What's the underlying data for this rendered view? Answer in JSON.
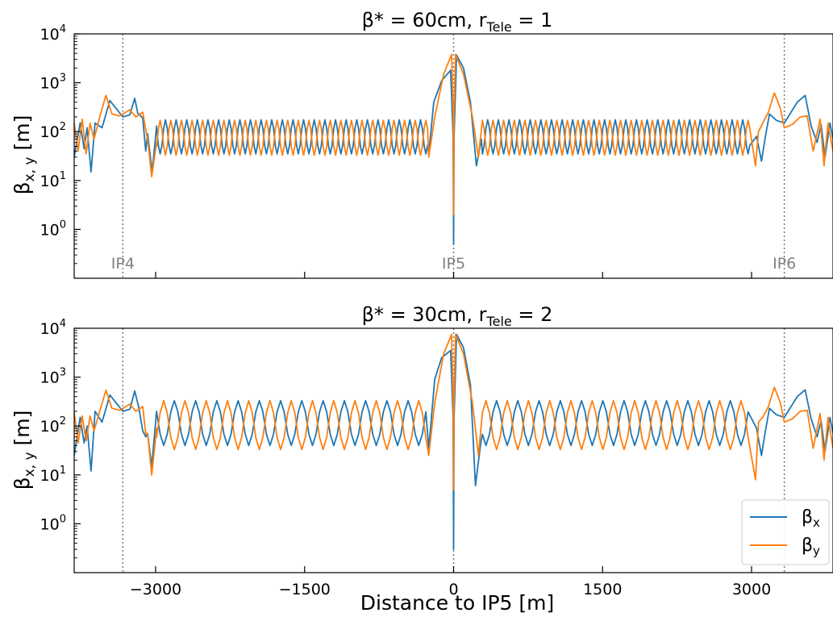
{
  "chart_data": [
    {
      "type": "line",
      "title_parts": {
        "a": "β*",
        "b": " = 60cm, r",
        "sub": "Tele",
        "c": " = 1"
      },
      "ylabel_parts": {
        "base": "β",
        "sub": "x, y",
        "rest": " [m]"
      },
      "yscale": "log",
      "ylim": [
        0.1,
        10000
      ],
      "xlim": [
        -3820,
        3820
      ],
      "xticks": [
        -3000,
        -1500,
        0,
        1500,
        3000
      ],
      "xticklabels_shown": false,
      "yticks": [
        {
          "value": 1,
          "base": "10",
          "exp": "0"
        },
        {
          "value": 10,
          "base": "10",
          "exp": "1"
        },
        {
          "value": 100,
          "base": "10",
          "exp": "2"
        },
        {
          "value": 1000,
          "base": "10",
          "exp": "3"
        },
        {
          "value": 10000,
          "base": "10",
          "exp": "4"
        }
      ],
      "ip_markers": [
        {
          "label": "IP4",
          "x": -3330
        },
        {
          "label": "IP5",
          "x": 0
        },
        {
          "label": "IP6",
          "x": 3330
        }
      ],
      "arc": {
        "period": 107,
        "start": 3030,
        "end": 230,
        "x": {
          "min": 35,
          "max": 175
        },
        "y": {
          "min": 33,
          "max": 170
        }
      },
      "series": [
        {
          "key": "bx",
          "color": "#1f77b4",
          "near_ip": [
            [
              -250,
              35
            ],
            [
              -200,
              400
            ],
            [
              -120,
              1100
            ],
            [
              -30,
              1800
            ],
            [
              -5,
              80
            ],
            [
              0,
              0.5
            ],
            [
              5,
              80
            ],
            [
              30,
              3700
            ],
            [
              100,
              2000
            ],
            [
              170,
              400
            ],
            [
              230,
              20
            ],
            [
              280,
              70
            ]
          ],
          "left_arc_end": [
            [
              -3100,
              40
            ],
            [
              -3035,
              15
            ],
            [
              -2990,
              130
            ]
          ],
          "insertion_left": [
            [
              -3820,
              30
            ],
            [
              -3760,
              150
            ],
            [
              -3720,
              45
            ],
            [
              -3690,
              120
            ],
            [
              -3650,
              15
            ],
            [
              -3610,
              150
            ],
            [
              -3540,
              120
            ],
            [
              -3460,
              430
            ],
            [
              -3330,
              200
            ],
            [
              -3260,
              220
            ],
            [
              -3210,
              480
            ],
            [
              -3180,
              240
            ],
            [
              -3130,
              190
            ],
            [
              -3080,
              90
            ]
          ],
          "insertion_right": [
            [
              3050,
              80
            ],
            [
              3100,
              25
            ],
            [
              3140,
              80
            ],
            [
              3180,
              230
            ],
            [
              3250,
              170
            ],
            [
              3330,
              150
            ],
            [
              3460,
              400
            ],
            [
              3540,
              550
            ],
            [
              3600,
              130
            ],
            [
              3660,
              60
            ],
            [
              3700,
              140
            ],
            [
              3740,
              30
            ],
            [
              3790,
              150
            ],
            [
              3820,
              70
            ]
          ]
        },
        {
          "key": "by",
          "color": "#ff7f0e",
          "near_ip": [
            [
              -250,
              30
            ],
            [
              -190,
              200
            ],
            [
              -100,
              1500
            ],
            [
              -20,
              3800
            ],
            [
              -3,
              200
            ],
            [
              0,
              2
            ],
            [
              3,
              200
            ],
            [
              20,
              3800
            ],
            [
              100,
              1500
            ],
            [
              190,
              200
            ],
            [
              250,
              30
            ]
          ],
          "left_arc_end": [
            [
              -3100,
              110
            ],
            [
              -3040,
              12
            ],
            [
              -2990,
              60
            ]
          ],
          "insertion_right": [
            [
              3040,
              20
            ],
            [
              3070,
              100
            ],
            [
              3120,
              160
            ],
            [
              3170,
              250
            ],
            [
              3230,
              620
            ],
            [
              3290,
              300
            ],
            [
              3330,
              120
            ],
            [
              3410,
              140
            ],
            [
              3490,
              200
            ],
            [
              3560,
              210
            ],
            [
              3620,
              40
            ],
            [
              3690,
              180
            ],
            [
              3730,
              20
            ],
            [
              3770,
              150
            ],
            [
              3820,
              40
            ]
          ],
          "insertion_left": [
            [
              -3820,
              150
            ],
            [
              -3780,
              40
            ],
            [
              -3740,
              180
            ],
            [
              -3700,
              35
            ],
            [
              -3660,
              150
            ],
            [
              -3620,
              70
            ],
            [
              -3560,
              210
            ],
            [
              -3500,
              550
            ],
            [
              -3440,
              230
            ],
            [
              -3360,
              210
            ],
            [
              -3260,
              280
            ],
            [
              -3200,
              200
            ],
            [
              -3130,
              250
            ],
            [
              -3080,
              70
            ]
          ]
        }
      ]
    },
    {
      "type": "line",
      "title_parts": {
        "a": "β*",
        "b": " = 30cm, r",
        "sub": "Tele",
        "c": " = 2"
      },
      "ylabel_parts": {
        "base": "β",
        "sub": "x, y",
        "rest": " [m]"
      },
      "xlabel": "Distance to IP5 [m]",
      "yscale": "log",
      "ylim": [
        0.1,
        10000
      ],
      "xlim": [
        -3820,
        3820
      ],
      "xticks": [
        -3000,
        -1500,
        0,
        1500,
        3000
      ],
      "xticklabels": [
        "−3000",
        "−1500",
        "0",
        "1500",
        "3000"
      ],
      "yticks": [
        {
          "value": 1,
          "base": "10",
          "exp": "0"
        },
        {
          "value": 10,
          "base": "10",
          "exp": "1"
        },
        {
          "value": 100,
          "base": "10",
          "exp": "2"
        },
        {
          "value": 1000,
          "base": "10",
          "exp": "3"
        },
        {
          "value": 10000,
          "base": "10",
          "exp": "4"
        }
      ],
      "ip_markers": [
        {
          "label": "",
          "x": -3330
        },
        {
          "label": "",
          "x": 0
        },
        {
          "label": "",
          "x": 3330
        }
      ],
      "arc": {
        "period": 214,
        "start": 3030,
        "end": 230,
        "x": {
          "min": 40,
          "max": 330
        },
        "y": {
          "min": 33,
          "max": 330
        }
      },
      "legend": {
        "placement": "lower right",
        "entries": [
          {
            "base": "β",
            "sub": "x",
            "color": "#1f77b4"
          },
          {
            "base": "β",
            "sub": "y",
            "color": "#ff7f0e"
          }
        ]
      },
      "series": [
        {
          "key": "bx",
          "color": "#1f77b4",
          "near_ip": [
            [
              -250,
              35
            ],
            [
              -190,
              900
            ],
            [
              -120,
              2500
            ],
            [
              -30,
              3500
            ],
            [
              -5,
              150
            ],
            [
              0,
              0.3
            ],
            [
              5,
              150
            ],
            [
              30,
              7500
            ],
            [
              100,
              4000
            ],
            [
              170,
              700
            ],
            [
              220,
              6
            ],
            [
              270,
              40
            ]
          ],
          "left_arc_end": [
            [
              -3100,
              60
            ],
            [
              -3040,
              15
            ],
            [
              -2990,
              200
            ]
          ],
          "insertion_left": [
            [
              -3820,
              25
            ],
            [
              -3760,
              150
            ],
            [
              -3720,
              45
            ],
            [
              -3690,
              100
            ],
            [
              -3650,
              12
            ],
            [
              -3610,
              200
            ],
            [
              -3540,
              120
            ],
            [
              -3460,
              430
            ],
            [
              -3330,
              200
            ],
            [
              -3260,
              220
            ],
            [
              -3210,
              520
            ],
            [
              -3170,
              240
            ],
            [
              -3130,
              80
            ],
            [
              -3080,
              70
            ]
          ],
          "insertion_right": [
            [
              3050,
              90
            ],
            [
              3100,
              25
            ],
            [
              3140,
              80
            ],
            [
              3180,
              230
            ],
            [
              3250,
              170
            ],
            [
              3330,
              150
            ],
            [
              3460,
              400
            ],
            [
              3540,
              550
            ],
            [
              3600,
              140
            ],
            [
              3660,
              60
            ],
            [
              3700,
              130
            ],
            [
              3740,
              30
            ],
            [
              3790,
              150
            ],
            [
              3820,
              70
            ]
          ]
        },
        {
          "key": "by",
          "color": "#ff7f0e",
          "near_ip": [
            [
              -250,
              25
            ],
            [
              -190,
              300
            ],
            [
              -100,
              3000
            ],
            [
              -20,
              7500
            ],
            [
              -3,
              300
            ],
            [
              0,
              5
            ],
            [
              3,
              300
            ],
            [
              20,
              7500
            ],
            [
              100,
              3000
            ],
            [
              190,
              300
            ],
            [
              250,
              25
            ]
          ],
          "left_arc_end": [
            [
              -3100,
              70
            ],
            [
              -3040,
              10
            ],
            [
              -2990,
              90
            ]
          ],
          "insertion_right": [
            [
              3040,
              8
            ],
            [
              3070,
              120
            ],
            [
              3120,
              160
            ],
            [
              3170,
              250
            ],
            [
              3230,
              620
            ],
            [
              3290,
              300
            ],
            [
              3330,
              120
            ],
            [
              3410,
              140
            ],
            [
              3490,
              200
            ],
            [
              3560,
              210
            ],
            [
              3620,
              35
            ],
            [
              3690,
              180
            ],
            [
              3730,
              20
            ],
            [
              3770,
              150
            ],
            [
              3820,
              35
            ]
          ],
          "insertion_left": [
            [
              -3820,
              190
            ],
            [
              -3780,
              45
            ],
            [
              -3740,
              160
            ],
            [
              -3700,
              50
            ],
            [
              -3660,
              160
            ],
            [
              -3620,
              80
            ],
            [
              -3560,
              210
            ],
            [
              -3500,
              540
            ],
            [
              -3440,
              230
            ],
            [
              -3360,
              210
            ],
            [
              -3260,
              280
            ],
            [
              -3200,
              200
            ],
            [
              -3130,
              250
            ],
            [
              -3080,
              70
            ]
          ]
        }
      ]
    }
  ]
}
